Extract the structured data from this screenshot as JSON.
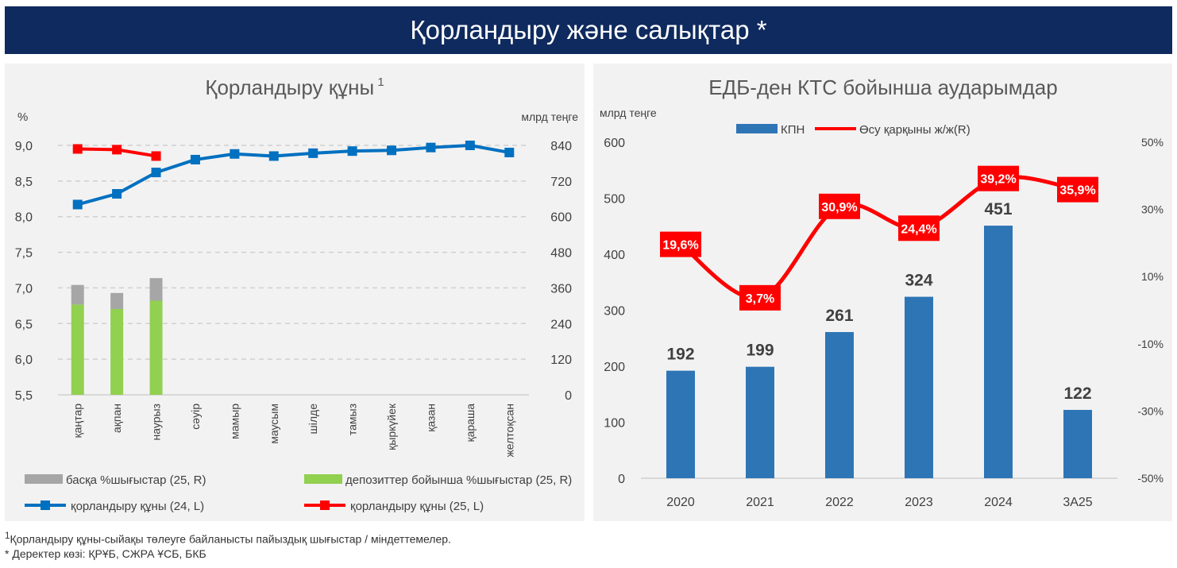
{
  "banner": {
    "title": "Қорландыру және салықтар *"
  },
  "left_chart_data": {
    "type": "line+stacked-bar",
    "title": "Қорландыру құны",
    "title_sup": "1",
    "ylabel_left": "%",
    "ylabel_right": "млрд теңге",
    "ylim_left": [
      5.5,
      9.0
    ],
    "yticks_left": [
      "5,5",
      "6,0",
      "6,5",
      "7,0",
      "7,5",
      "8,0",
      "8,5",
      "9,0"
    ],
    "ylim_right": [
      0,
      840
    ],
    "yticks_right": [
      "0",
      "120",
      "240",
      "360",
      "480",
      "600",
      "720",
      "840"
    ],
    "grid": true,
    "categories": [
      "қаңтар",
      "ақпан",
      "наурыз",
      "сәуір",
      "мамыр",
      "маусым",
      "шілде",
      "тамыз",
      "қыркүйек",
      "қазан",
      "қараша",
      "желтоқсан"
    ],
    "bars": [
      {
        "name": "депозиттер бойынша %шығыстар (25, R)",
        "color": "#92d050",
        "values": [
          304,
          289,
          317
        ]
      },
      {
        "name": "басқа %шығыстар (25, R)",
        "color": "#a6a6a6",
        "values": [
          66,
          54,
          76
        ]
      }
    ],
    "lines": [
      {
        "name": "қорландыру құны (24, L)",
        "color": "#0070c0",
        "values": [
          8.17,
          8.32,
          8.62,
          8.8,
          8.88,
          8.85,
          8.89,
          8.92,
          8.93,
          8.97,
          9.0,
          8.9
        ]
      },
      {
        "name": "қорландыру құны (25, L)",
        "color": "#ff0000",
        "values": [
          8.95,
          8.94,
          8.85
        ]
      }
    ],
    "legend": "bottom"
  },
  "right_chart_data": {
    "type": "bar+line",
    "title": "ЕДБ-ден КТС бойынша аударымдар",
    "ylabel_left": "млрд теңге",
    "ylim_left": [
      0,
      600
    ],
    "yticks_left": [
      "0",
      "100",
      "200",
      "300",
      "400",
      "500",
      "600"
    ],
    "ylim_right": [
      -50,
      50
    ],
    "yticks_right": [
      "-50%",
      "-30%",
      "-10%",
      "10%",
      "30%",
      "50%"
    ],
    "grid": false,
    "categories": [
      "2020",
      "2021",
      "2022",
      "2023",
      "2024",
      "3А25"
    ],
    "bar_series": {
      "name": "КПН",
      "color": "#2e75b6",
      "values": [
        192,
        199,
        261,
        324,
        451,
        122
      ],
      "labels": [
        "192",
        "199",
        "261",
        "324",
        "451",
        "122"
      ]
    },
    "line_series": {
      "name": "Өсу қарқыны ж/ж(R)",
      "color": "#ff0000",
      "values": [
        19.6,
        3.7,
        30.9,
        24.4,
        39.2,
        35.9
      ],
      "labels": [
        "19,6%",
        "3,7%",
        "30,9%",
        "24,4%",
        "39,2%",
        "35,9%"
      ]
    },
    "legend": "top"
  },
  "footnotes": {
    "note1_sup": "1",
    "note1": "Қорландыру құны-сыйақы төлеуге байланысты пайыздық шығыстар / міндеттемелер.",
    "note2": "* Деректер көзі: ҚРҰБ, СЖРА ҰСБ, БКБ"
  }
}
